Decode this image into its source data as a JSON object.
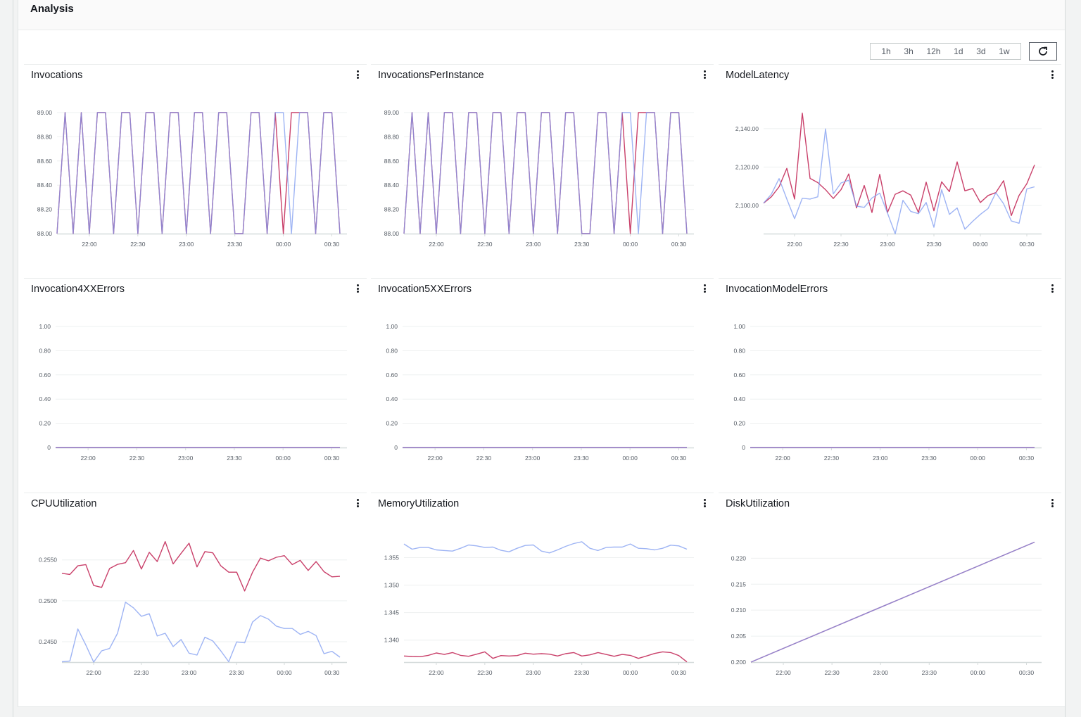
{
  "header": {
    "title": "Analysis"
  },
  "time_range": {
    "options": [
      "1h",
      "3h",
      "12h",
      "1d",
      "3d",
      "1w"
    ],
    "refresh_icon": "refresh-icon"
  },
  "colors": {
    "series_a": "#c9406a",
    "series_b": "#7d9bf0",
    "grid": "#eef0f0",
    "axis": "#d5dbdb"
  },
  "chart_data": [
    {
      "type": "line",
      "title": "Invocations",
      "x": [
        "21:40",
        "21:45",
        "21:50",
        "21:55",
        "22:00",
        "22:05",
        "22:10",
        "22:15",
        "22:20",
        "22:25",
        "22:30",
        "22:35",
        "22:40",
        "22:45",
        "22:50",
        "22:55",
        "23:00",
        "23:05",
        "23:10",
        "23:15",
        "23:20",
        "23:25",
        "23:30",
        "23:35",
        "23:40",
        "23:45",
        "23:50",
        "23:55",
        "00:00",
        "00:05",
        "00:10",
        "00:15",
        "00:20",
        "00:25",
        "00:30",
        "00:35"
      ],
      "xticks": [
        "22:00",
        "22:30",
        "23:00",
        "23:30",
        "00:00",
        "00:30"
      ],
      "ylim": [
        88,
        89
      ],
      "yticks": [
        {
          "value": 88,
          "label": "88.00"
        },
        {
          "value": 88.2,
          "label": "88.20"
        },
        {
          "value": 88.4,
          "label": "88.40"
        },
        {
          "value": 88.6,
          "label": "88.60"
        },
        {
          "value": 88.8,
          "label": "88.80"
        },
        {
          "value": 89,
          "label": "89.00"
        }
      ],
      "series": [
        {
          "color": "#c9406a",
          "values": [
            88,
            89,
            88,
            89,
            88,
            89,
            89,
            88,
            89,
            89,
            88,
            89,
            89,
            88,
            89,
            89,
            88,
            89,
            89,
            88,
            89,
            89,
            88,
            88,
            89,
            89,
            88,
            89,
            88,
            89,
            89,
            89,
            88,
            89,
            89,
            88
          ]
        },
        {
          "color": "#7d9bf0",
          "values": [
            88,
            89,
            88,
            89,
            88,
            89,
            89,
            88,
            89,
            89,
            88,
            89,
            89,
            88,
            89,
            89,
            88,
            89,
            89,
            88,
            89,
            89,
            88,
            88,
            89,
            89,
            88,
            89,
            89,
            88,
            89,
            89,
            88,
            89,
            89,
            88
          ]
        }
      ]
    },
    {
      "type": "line",
      "title": "InvocationsPerInstance",
      "x": [
        "21:40",
        "21:45",
        "21:50",
        "21:55",
        "22:00",
        "22:05",
        "22:10",
        "22:15",
        "22:20",
        "22:25",
        "22:30",
        "22:35",
        "22:40",
        "22:45",
        "22:50",
        "22:55",
        "23:00",
        "23:05",
        "23:10",
        "23:15",
        "23:20",
        "23:25",
        "23:30",
        "23:35",
        "23:40",
        "23:45",
        "23:50",
        "23:55",
        "00:00",
        "00:05",
        "00:10",
        "00:15",
        "00:20",
        "00:25",
        "00:30",
        "00:35"
      ],
      "xticks": [
        "22:00",
        "22:30",
        "23:00",
        "23:30",
        "00:00",
        "00:30"
      ],
      "ylim": [
        88,
        89
      ],
      "yticks": [
        {
          "value": 88,
          "label": "88.00"
        },
        {
          "value": 88.2,
          "label": "88.20"
        },
        {
          "value": 88.4,
          "label": "88.40"
        },
        {
          "value": 88.6,
          "label": "88.60"
        },
        {
          "value": 88.8,
          "label": "88.80"
        },
        {
          "value": 89,
          "label": "89.00"
        }
      ],
      "series": [
        {
          "color": "#c9406a",
          "values": [
            88,
            89,
            88,
            89,
            88,
            89,
            89,
            88,
            89,
            89,
            88,
            89,
            89,
            88,
            89,
            89,
            88,
            89,
            89,
            88,
            89,
            89,
            88,
            88,
            89,
            89,
            88,
            89,
            88,
            89,
            89,
            89,
            88,
            89,
            89,
            88
          ]
        },
        {
          "color": "#7d9bf0",
          "values": [
            88,
            89,
            88,
            89,
            88,
            89,
            89,
            88,
            89,
            89,
            88,
            89,
            89,
            88,
            89,
            89,
            88,
            89,
            89,
            88,
            89,
            89,
            88,
            88,
            89,
            89,
            88,
            89,
            89,
            88,
            89,
            89,
            88,
            89,
            89,
            88
          ]
        }
      ]
    },
    {
      "type": "line",
      "title": "ModelLatency",
      "x": [
        "21:40",
        "21:45",
        "21:50",
        "21:55",
        "22:00",
        "22:05",
        "22:10",
        "22:15",
        "22:20",
        "22:25",
        "22:30",
        "22:35",
        "22:40",
        "22:45",
        "22:50",
        "22:55",
        "23:00",
        "23:05",
        "23:10",
        "23:15",
        "23:20",
        "23:25",
        "23:30",
        "23:35",
        "23:40",
        "23:45",
        "23:50",
        "23:55",
        "00:00",
        "00:05",
        "00:10",
        "00:15",
        "00:20",
        "00:25",
        "00:30",
        "00:35"
      ],
      "xticks": [
        "22:00",
        "22:30",
        "23:00",
        "23:30",
        "00:00",
        "00:30"
      ],
      "ylim": [
        2085.3,
        2148.4
      ],
      "yticks": [
        {
          "value": 2100,
          "label": "2,100.00"
        },
        {
          "value": 2120,
          "label": "2,120.00"
        },
        {
          "value": 2140,
          "label": "2,140.00"
        }
      ],
      "series": [
        {
          "color": "#c9406a",
          "values": [
            2101.2,
            2104.5,
            2109.7,
            2119.3,
            2103.3,
            2148.1,
            2114.1,
            2111.9,
            2108.2,
            2103.6,
            2108.2,
            2116.4,
            2098.7,
            2110.4,
            2096.3,
            2116.2,
            2096.3,
            2105.8,
            2107.6,
            2105.4,
            2096.3,
            2112.1,
            2097.2,
            2112.3,
            2107.2,
            2122.7,
            2107.6,
            2108.8,
            2101.5,
            2105.2,
            2106.7,
            2112.9,
            2094.7,
            2105.2,
            2111.3,
            2121.1
          ]
        },
        {
          "color": "#7d9bf0",
          "values": [
            2101.2,
            2105.8,
            2114.0,
            2103.3,
            2093.1,
            2103.7,
            2103.3,
            2104.5,
            2139.9,
            2106.0,
            2111.7,
            2113.1,
            2099.6,
            2099.0,
            2103.9,
            2106.4,
            2096.0,
            2085.2,
            2102.7,
            2096.9,
            2095.7,
            2101.5,
            2088.6,
            2108.2,
            2095.3,
            2098.7,
            2087.6,
            2091.7,
            2095.3,
            2098.4,
            2106.6,
            2100.9,
            2091.9,
            2090.7,
            2108.6,
            2109.7
          ]
        }
      ]
    },
    {
      "type": "line",
      "title": "Invocation4XXErrors",
      "x": [
        "21:40",
        "00:35"
      ],
      "xticks": [
        "22:00",
        "22:30",
        "23:00",
        "23:30",
        "00:00",
        "00:30"
      ],
      "ylim": [
        0,
        1
      ],
      "yticks": [
        {
          "value": 0,
          "label": "0"
        },
        {
          "value": 0.2,
          "label": "0.20"
        },
        {
          "value": 0.4,
          "label": "0.40"
        },
        {
          "value": 0.6,
          "label": "0.60"
        },
        {
          "value": 0.8,
          "label": "0.80"
        },
        {
          "value": 1,
          "label": "1.00"
        }
      ],
      "series": [
        {
          "color": "#c9406a",
          "values": [
            0,
            0
          ]
        },
        {
          "color": "#7d9bf0",
          "values": [
            0,
            0
          ]
        }
      ]
    },
    {
      "type": "line",
      "title": "Invocation5XXErrors",
      "x": [
        "21:40",
        "00:35"
      ],
      "xticks": [
        "22:00",
        "22:30",
        "23:00",
        "23:30",
        "00:00",
        "00:30"
      ],
      "ylim": [
        0,
        1
      ],
      "yticks": [
        {
          "value": 0,
          "label": "0"
        },
        {
          "value": 0.2,
          "label": "0.20"
        },
        {
          "value": 0.4,
          "label": "0.40"
        },
        {
          "value": 0.6,
          "label": "0.60"
        },
        {
          "value": 0.8,
          "label": "0.80"
        },
        {
          "value": 1,
          "label": "1.00"
        }
      ],
      "series": [
        {
          "color": "#c9406a",
          "values": [
            0,
            0
          ]
        },
        {
          "color": "#7d9bf0",
          "values": [
            0,
            0
          ]
        }
      ]
    },
    {
      "type": "line",
      "title": "InvocationModelErrors",
      "x": [
        "21:40",
        "00:35"
      ],
      "xticks": [
        "22:00",
        "22:30",
        "23:00",
        "23:30",
        "00:00",
        "00:30"
      ],
      "ylim": [
        0,
        1
      ],
      "yticks": [
        {
          "value": 0,
          "label": "0"
        },
        {
          "value": 0.2,
          "label": "0.20"
        },
        {
          "value": 0.4,
          "label": "0.40"
        },
        {
          "value": 0.6,
          "label": "0.60"
        },
        {
          "value": 0.8,
          "label": "0.80"
        },
        {
          "value": 1,
          "label": "1.00"
        }
      ],
      "series": [
        {
          "color": "#c9406a",
          "values": [
            0,
            0
          ]
        },
        {
          "color": "#7d9bf0",
          "values": [
            0,
            0
          ]
        }
      ]
    },
    {
      "type": "line",
      "title": "CPUUtilization",
      "x": [
        "21:40",
        "21:45",
        "21:50",
        "21:55",
        "22:00",
        "22:05",
        "22:10",
        "22:15",
        "22:20",
        "22:25",
        "22:30",
        "22:35",
        "22:40",
        "22:45",
        "22:50",
        "22:55",
        "23:00",
        "23:05",
        "23:10",
        "23:15",
        "23:20",
        "23:25",
        "23:30",
        "23:35",
        "23:40",
        "23:45",
        "23:50",
        "23:55",
        "00:00",
        "00:05",
        "00:10",
        "00:15",
        "00:20",
        "00:25",
        "00:30",
        "00:35"
      ],
      "xticks": [
        "22:00",
        "22:30",
        "23:00",
        "23:30",
        "00:00",
        "00:30"
      ],
      "ylim": [
        0.2425,
        0.2573
      ],
      "yticks": [
        {
          "value": 0.245,
          "label": "0.2450"
        },
        {
          "value": 0.25,
          "label": "0.2500"
        },
        {
          "value": 0.255,
          "label": "0.2550"
        }
      ],
      "series": [
        {
          "color": "#c9406a",
          "values": [
            0.25336,
            0.25322,
            0.25428,
            0.25443,
            0.25187,
            0.25164,
            0.25394,
            0.25445,
            0.25466,
            0.25615,
            0.25388,
            0.25592,
            0.2548,
            0.25724,
            0.25451,
            0.2558,
            0.25704,
            0.25414,
            0.25601,
            0.25586,
            0.25428,
            0.2535,
            0.2535,
            0.2512,
            0.2535,
            0.25523,
            0.25489,
            0.25532,
            0.25552,
            0.25443,
            0.25494,
            0.25371,
            0.2548,
            0.25356,
            0.25293,
            0.25299
          ]
        },
        {
          "color": "#7d9bf0",
          "values": [
            0.24254,
            0.24264,
            0.24655,
            0.2446,
            0.2425,
            0.24388,
            0.24417,
            0.24603,
            0.24983,
            0.24914,
            0.2481,
            0.24842,
            0.24569,
            0.24603,
            0.2444,
            0.24526,
            0.24359,
            0.24336,
            0.24555,
            0.24509,
            0.24388,
            0.24254,
            0.24497,
            0.24486,
            0.24741,
            0.24819,
            0.24776,
            0.2469,
            0.24661,
            0.24661,
            0.24589,
            0.24626,
            0.24575,
            0.24353,
            0.24382,
            0.2431
          ]
        }
      ]
    },
    {
      "type": "line",
      "title": "MemoryUtilization",
      "x": [
        "21:40",
        "21:45",
        "21:50",
        "21:55",
        "22:00",
        "22:05",
        "22:10",
        "22:15",
        "22:20",
        "22:25",
        "22:30",
        "22:35",
        "22:40",
        "22:45",
        "22:50",
        "22:55",
        "23:00",
        "23:05",
        "23:10",
        "23:15",
        "23:20",
        "23:25",
        "23:30",
        "23:35",
        "23:40",
        "23:45",
        "23:50",
        "23:55",
        "00:00",
        "00:05",
        "00:10",
        "00:15",
        "00:20",
        "00:25",
        "00:30",
        "00:35"
      ],
      "xticks": [
        "22:00",
        "22:30",
        "23:00",
        "23:30",
        "00:00",
        "00:30"
      ],
      "ylim": [
        1.336,
        1.358
      ],
      "yticks": [
        {
          "value": 1.34,
          "label": "1.340"
        },
        {
          "value": 1.345,
          "label": "1.345"
        },
        {
          "value": 1.35,
          "label": "1.350"
        },
        {
          "value": 1.355,
          "label": "1.355"
        }
      ],
      "series": [
        {
          "color": "#c9406a",
          "values": [
            1.33711,
            1.33702,
            1.33698,
            1.33723,
            1.33766,
            1.3374,
            1.33774,
            1.33723,
            1.33706,
            1.33745,
            1.33787,
            1.33668,
            1.33719,
            1.33711,
            1.33719,
            1.33762,
            1.33745,
            1.33753,
            1.33745,
            1.33711,
            1.33753,
            1.33774,
            1.33711,
            1.33732,
            1.33774,
            1.3374,
            1.33706,
            1.3374,
            1.33723,
            1.33668,
            1.33711,
            1.33757,
            1.33787,
            1.33774,
            1.33719,
            1.33604
          ]
        },
        {
          "color": "#7d9bf0",
          "values": [
            1.35747,
            1.35653,
            1.35683,
            1.35683,
            1.3564,
            1.35628,
            1.35619,
            1.3567,
            1.3573,
            1.35713,
            1.35683,
            1.35691,
            1.35632,
            1.35606,
            1.3567,
            1.35721,
            1.3573,
            1.35619,
            1.35585,
            1.3564,
            1.35704,
            1.35755,
            1.35789,
            1.3567,
            1.35628,
            1.35683,
            1.35691,
            1.35691,
            1.35747,
            1.3567,
            1.35662,
            1.3564,
            1.3567,
            1.35726,
            1.35713,
            1.35653
          ]
        }
      ]
    },
    {
      "type": "line",
      "title": "DiskUtilization",
      "x": [
        "21:40",
        "00:35"
      ],
      "xticks": [
        "22:00",
        "22:30",
        "23:00",
        "23:30",
        "00:00",
        "00:30"
      ],
      "ylim": [
        0.2,
        0.2233
      ],
      "yticks": [
        {
          "value": 0.2,
          "label": "0.200"
        },
        {
          "value": 0.205,
          "label": "0.205"
        },
        {
          "value": 0.21,
          "label": "0.210"
        },
        {
          "value": 0.215,
          "label": "0.215"
        },
        {
          "value": 0.22,
          "label": "0.220"
        }
      ],
      "series": [
        {
          "color": "#c9406a",
          "values": [
            0.2,
            0.2231
          ]
        },
        {
          "color": "#7d9bf0",
          "values": [
            0.2,
            0.2231
          ]
        }
      ]
    }
  ]
}
